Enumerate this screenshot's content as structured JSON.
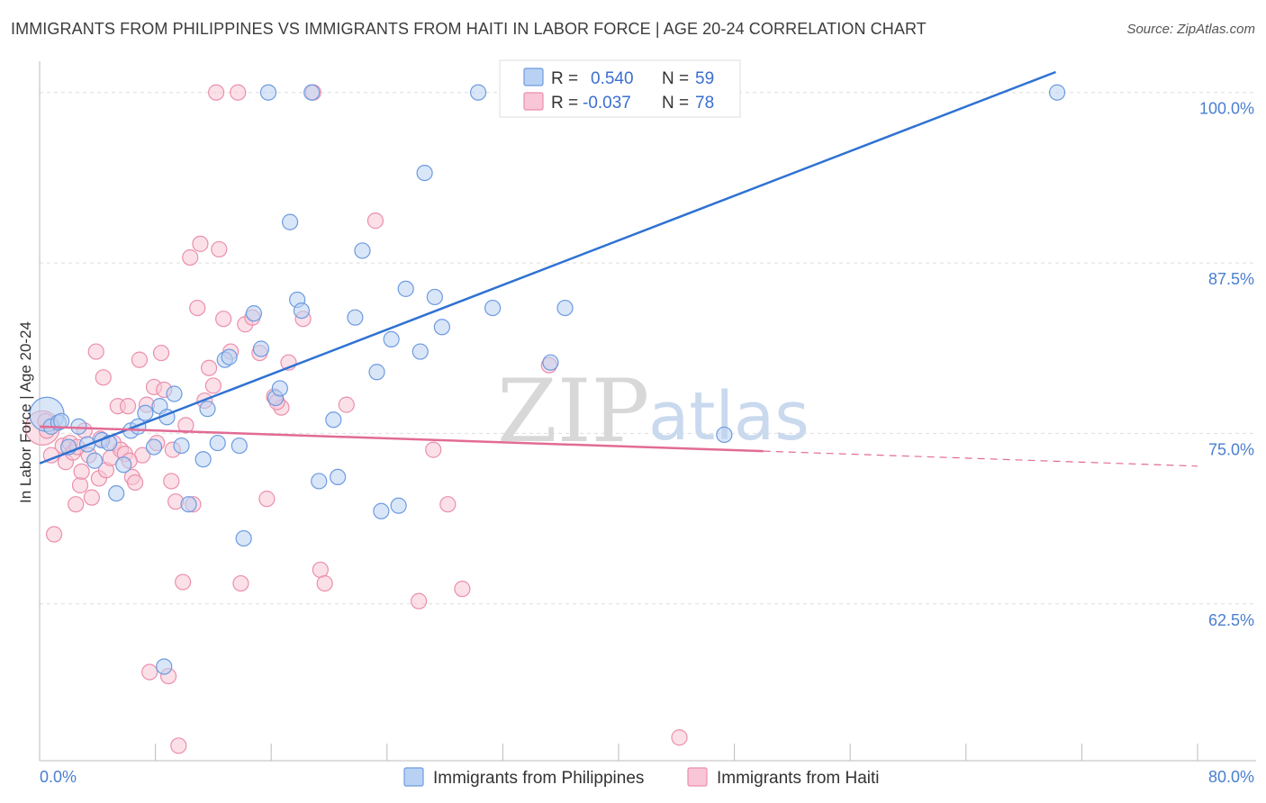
{
  "title": "IMMIGRANTS FROM PHILIPPINES VS IMMIGRANTS FROM HAITI IN LABOR FORCE | AGE 20-24 CORRELATION CHART",
  "source": "Source: ZipAtlas.com",
  "watermark": {
    "zip": "ZIP",
    "atlas": "atlas"
  },
  "colors": {
    "philippines_fill": "#b9d2f3",
    "philippines_stroke": "#6d9be0",
    "philippines_line": "#2f72d2",
    "haiti_fill": "#f8c6d6",
    "haiti_stroke": "#eb8fac",
    "haiti_line": "#e26b95",
    "tick_text": "#4a7fd0",
    "grid": "#dddddd"
  },
  "legend": {
    "placement": "top-center",
    "rows": [
      {
        "r_label": "R =",
        "r_value": "0.540",
        "n_label": "N =",
        "n_value": "59"
      },
      {
        "r_label": "R =",
        "r_value": "-0.037",
        "n_label": "N =",
        "n_value": "78"
      }
    ]
  },
  "chart_data": {
    "type": "scatter",
    "title": "IMMIGRANTS FROM PHILIPPINES VS IMMIGRANTS FROM HAITI IN LABOR FORCE | AGE 20-24 CORRELATION CHART",
    "xlabel": "",
    "ylabel": "In Labor Force | Age 20-24",
    "xlim": [
      0,
      80
    ],
    "ylim": [
      51,
      101.5
    ],
    "x_tick_labels": [
      "0.0%",
      "80.0%"
    ],
    "y_ticks": [
      100,
      87.5,
      75,
      62.5
    ],
    "y_tick_labels": [
      "100.0%",
      "87.5%",
      "75.0%",
      "62.5%"
    ],
    "grid": "horizontal dashed",
    "series": [
      {
        "name": "Immigrants from Philippines",
        "trend": {
          "x": [
            0,
            70.2
          ],
          "y": [
            72.8,
            101.5
          ],
          "dashed_to": null
        },
        "points": [
          {
            "x": 0.5,
            "y": 76.4,
            "big": true
          },
          {
            "x": 0.8,
            "y": 75.5
          },
          {
            "x": 1.3,
            "y": 75.8
          },
          {
            "x": 2.0,
            "y": 74.0
          },
          {
            "x": 2.7,
            "y": 75.5
          },
          {
            "x": 3.3,
            "y": 74.2
          },
          {
            "x": 3.8,
            "y": 73.0
          },
          {
            "x": 4.3,
            "y": 74.5
          },
          {
            "x": 4.8,
            "y": 74.3
          },
          {
            "x": 5.3,
            "y": 70.6
          },
          {
            "x": 5.8,
            "y": 72.7
          },
          {
            "x": 6.3,
            "y": 75.2
          },
          {
            "x": 6.8,
            "y": 75.5
          },
          {
            "x": 7.3,
            "y": 76.5
          },
          {
            "x": 7.9,
            "y": 74.0
          },
          {
            "x": 8.3,
            "y": 77.0
          },
          {
            "x": 8.8,
            "y": 76.2
          },
          {
            "x": 9.3,
            "y": 77.9
          },
          {
            "x": 9.8,
            "y": 74.1
          },
          {
            "x": 10.3,
            "y": 69.8
          },
          {
            "x": 11.3,
            "y": 73.1
          },
          {
            "x": 11.6,
            "y": 76.8
          },
          {
            "x": 12.3,
            "y": 74.3
          },
          {
            "x": 12.8,
            "y": 80.4
          },
          {
            "x": 13.1,
            "y": 80.6
          },
          {
            "x": 13.8,
            "y": 74.1
          },
          {
            "x": 14.1,
            "y": 67.3
          },
          {
            "x": 14.8,
            "y": 83.8
          },
          {
            "x": 15.3,
            "y": 81.2
          },
          {
            "x": 15.8,
            "y": 100.0
          },
          {
            "x": 16.3,
            "y": 77.6
          },
          {
            "x": 16.6,
            "y": 78.3
          },
          {
            "x": 17.3,
            "y": 90.5
          },
          {
            "x": 17.8,
            "y": 84.8
          },
          {
            "x": 18.1,
            "y": 84.0
          },
          {
            "x": 18.8,
            "y": 100.0
          },
          {
            "x": 19.3,
            "y": 71.5
          },
          {
            "x": 20.3,
            "y": 76.0
          },
          {
            "x": 20.6,
            "y": 71.8
          },
          {
            "x": 21.8,
            "y": 83.5
          },
          {
            "x": 22.3,
            "y": 88.4
          },
          {
            "x": 23.3,
            "y": 79.5
          },
          {
            "x": 23.6,
            "y": 69.3
          },
          {
            "x": 24.3,
            "y": 81.9
          },
          {
            "x": 24.8,
            "y": 69.7
          },
          {
            "x": 25.3,
            "y": 85.6
          },
          {
            "x": 26.3,
            "y": 81.0
          },
          {
            "x": 26.6,
            "y": 94.1
          },
          {
            "x": 27.3,
            "y": 85.0
          },
          {
            "x": 27.8,
            "y": 82.8
          },
          {
            "x": 30.3,
            "y": 100.0
          },
          {
            "x": 31.3,
            "y": 84.2
          },
          {
            "x": 33.3,
            "y": 100.0
          },
          {
            "x": 35.3,
            "y": 80.2
          },
          {
            "x": 36.3,
            "y": 84.2
          },
          {
            "x": 47.3,
            "y": 74.9
          },
          {
            "x": 70.3,
            "y": 100.0
          },
          {
            "x": 1.5,
            "y": 75.9
          },
          {
            "x": 8.6,
            "y": 57.9
          }
        ]
      },
      {
        "name": "Immigrants from Haiti",
        "trend": {
          "x": [
            0,
            50
          ],
          "y": [
            75.5,
            73.7
          ],
          "dashed_to": [
            80,
            72.6
          ]
        },
        "points": [
          {
            "x": 0.2,
            "y": 75.4,
            "big": true
          },
          {
            "x": 0.5,
            "y": 75.2
          },
          {
            "x": 0.8,
            "y": 73.4
          },
          {
            "x": 1.0,
            "y": 67.6
          },
          {
            "x": 1.6,
            "y": 74.1
          },
          {
            "x": 1.8,
            "y": 72.9
          },
          {
            "x": 2.1,
            "y": 74.3
          },
          {
            "x": 2.3,
            "y": 73.6
          },
          {
            "x": 2.5,
            "y": 69.8
          },
          {
            "x": 2.8,
            "y": 71.2
          },
          {
            "x": 2.9,
            "y": 72.2
          },
          {
            "x": 3.1,
            "y": 75.2
          },
          {
            "x": 3.4,
            "y": 73.4
          },
          {
            "x": 3.6,
            "y": 70.3
          },
          {
            "x": 3.9,
            "y": 81.0
          },
          {
            "x": 4.1,
            "y": 71.7
          },
          {
            "x": 4.4,
            "y": 79.1
          },
          {
            "x": 4.6,
            "y": 72.3
          },
          {
            "x": 4.9,
            "y": 73.2
          },
          {
            "x": 5.1,
            "y": 74.3
          },
          {
            "x": 5.4,
            "y": 77.0
          },
          {
            "x": 5.6,
            "y": 73.8
          },
          {
            "x": 5.9,
            "y": 73.5
          },
          {
            "x": 6.1,
            "y": 77.0
          },
          {
            "x": 6.4,
            "y": 71.8
          },
          {
            "x": 6.6,
            "y": 71.4
          },
          {
            "x": 6.9,
            "y": 80.4
          },
          {
            "x": 7.1,
            "y": 73.4
          },
          {
            "x": 7.4,
            "y": 77.1
          },
          {
            "x": 7.6,
            "y": 57.5
          },
          {
            "x": 7.9,
            "y": 78.4
          },
          {
            "x": 8.1,
            "y": 74.3
          },
          {
            "x": 8.4,
            "y": 80.9
          },
          {
            "x": 8.6,
            "y": 78.2
          },
          {
            "x": 8.9,
            "y": 57.2
          },
          {
            "x": 9.1,
            "y": 71.5
          },
          {
            "x": 9.4,
            "y": 70.0
          },
          {
            "x": 9.6,
            "y": 52.1
          },
          {
            "x": 9.9,
            "y": 64.1
          },
          {
            "x": 10.1,
            "y": 75.6
          },
          {
            "x": 10.4,
            "y": 87.9
          },
          {
            "x": 10.6,
            "y": 69.8
          },
          {
            "x": 10.9,
            "y": 84.2
          },
          {
            "x": 11.1,
            "y": 88.9
          },
          {
            "x": 11.4,
            "y": 77.4
          },
          {
            "x": 11.7,
            "y": 79.8
          },
          {
            "x": 12.2,
            "y": 100.0
          },
          {
            "x": 12.4,
            "y": 88.5
          },
          {
            "x": 12.7,
            "y": 83.4
          },
          {
            "x": 13.2,
            "y": 81.0
          },
          {
            "x": 13.7,
            "y": 100.0
          },
          {
            "x": 13.9,
            "y": 64.0
          },
          {
            "x": 14.2,
            "y": 83.0
          },
          {
            "x": 14.7,
            "y": 83.5
          },
          {
            "x": 15.2,
            "y": 80.9
          },
          {
            "x": 15.7,
            "y": 70.2
          },
          {
            "x": 16.2,
            "y": 77.7
          },
          {
            "x": 16.7,
            "y": 76.9
          },
          {
            "x": 17.2,
            "y": 80.2
          },
          {
            "x": 18.2,
            "y": 83.4
          },
          {
            "x": 18.9,
            "y": 100.0
          },
          {
            "x": 19.4,
            "y": 65.0
          },
          {
            "x": 19.7,
            "y": 64.0
          },
          {
            "x": 21.2,
            "y": 77.1
          },
          {
            "x": 23.2,
            "y": 90.6
          },
          {
            "x": 26.2,
            "y": 62.7
          },
          {
            "x": 27.2,
            "y": 73.8
          },
          {
            "x": 28.2,
            "y": 69.8
          },
          {
            "x": 29.2,
            "y": 63.6
          },
          {
            "x": 35.2,
            "y": 80.0
          },
          {
            "x": 44.2,
            "y": 52.7
          },
          {
            "x": 0.4,
            "y": 75.9
          },
          {
            "x": 2.6,
            "y": 74.0
          },
          {
            "x": 4.2,
            "y": 74.6
          },
          {
            "x": 6.2,
            "y": 73.0
          },
          {
            "x": 9.2,
            "y": 73.8
          },
          {
            "x": 12.0,
            "y": 78.5
          },
          {
            "x": 16.4,
            "y": 77.3
          }
        ]
      }
    ]
  }
}
